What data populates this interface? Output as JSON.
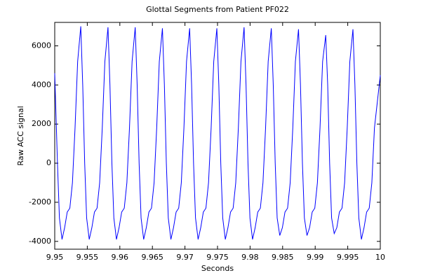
{
  "chart_data": {
    "type": "line",
    "title": "Glottal Segments from Patient PF022",
    "x_label": "Seconds",
    "y_label": "Raw ACC signal",
    "x": [
      9.95,
      9.95042,
      9.95072,
      9.95112,
      9.95152,
      9.95192,
      9.95232,
      9.95272,
      9.95312,
      9.95352,
      9.954,
      9.9543,
      9.9546,
      9.9549,
      9.9553,
      9.9557,
      9.9561,
      9.9565,
      9.9569,
      9.9573,
      9.9577,
      9.95818,
      9.95848,
      9.95878,
      9.95908,
      9.95948,
      9.95988,
      9.96028,
      9.96068,
      9.96108,
      9.96148,
      9.96188,
      9.96236,
      9.96266,
      9.96296,
      9.96326,
      9.96366,
      9.96406,
      9.96446,
      9.96486,
      9.96526,
      9.96566,
      9.96606,
      9.96654,
      9.96684,
      9.96714,
      9.96744,
      9.96784,
      9.96824,
      9.96864,
      9.96904,
      9.96944,
      9.96984,
      9.97024,
      9.97072,
      9.97102,
      9.97132,
      9.97162,
      9.97202,
      9.97242,
      9.97282,
      9.97322,
      9.97362,
      9.97402,
      9.97442,
      9.9749,
      9.9752,
      9.9755,
      9.9758,
      9.9762,
      9.9766,
      9.977,
      9.9774,
      9.9778,
      9.9782,
      9.9786,
      9.97908,
      9.97938,
      9.97968,
      9.97998,
      9.98038,
      9.98078,
      9.98118,
      9.98158,
      9.98198,
      9.98238,
      9.98278,
      9.98326,
      9.98356,
      9.98386,
      9.98416,
      9.98456,
      9.98496,
      9.98536,
      9.98576,
      9.98616,
      9.98656,
      9.98696,
      9.98744,
      9.98774,
      9.98804,
      9.98834,
      9.98874,
      9.98914,
      9.98954,
      9.98994,
      9.99034,
      9.99074,
      9.99114,
      9.99162,
      9.99192,
      9.99222,
      9.99252,
      9.99292,
      9.99332,
      9.99372,
      9.99412,
      9.99452,
      9.99492,
      9.99532,
      9.9958,
      9.9961,
      9.9964,
      9.9967,
      9.9971,
      9.9975,
      9.9979,
      9.9983,
      9.9987,
      9.9991,
      10
    ],
    "series": [
      {
        "color": "#0000ff",
        "values": [
          4600,
          0,
          -2800,
          -3900,
          -3300,
          -2500,
          -2300,
          -1000,
          1800,
          5200,
          7000,
          4000,
          0,
          -2800,
          -3900,
          -3300,
          -2500,
          -2300,
          -1000,
          1800,
          5200,
          6950,
          4000,
          0,
          -2800,
          -3900,
          -3300,
          -2500,
          -2300,
          -1000,
          1800,
          5200,
          6950,
          4000,
          0,
          -2800,
          -3900,
          -3300,
          -2500,
          -2300,
          -1000,
          1800,
          5200,
          6900,
          4000,
          0,
          -2800,
          -3900,
          -3300,
          -2500,
          -2300,
          -1000,
          1800,
          5200,
          6900,
          4000,
          0,
          -2800,
          -3900,
          -3300,
          -2500,
          -2300,
          -1000,
          1800,
          5200,
          6900,
          4000,
          0,
          -2800,
          -3900,
          -3300,
          -2500,
          -2300,
          -1000,
          1800,
          5200,
          6950,
          4000,
          0,
          -2800,
          -3900,
          -3300,
          -2500,
          -2300,
          -1000,
          1800,
          5200,
          6900,
          4000,
          0,
          -2800,
          -3700,
          -3300,
          -2500,
          -2300,
          -1000,
          1800,
          5200,
          6850,
          4000,
          0,
          -2800,
          -3700,
          -3300,
          -2500,
          -2300,
          -1000,
          1800,
          5200,
          6550,
          4000,
          0,
          -2800,
          -3600,
          -3300,
          -2500,
          -2300,
          -1000,
          1800,
          5200,
          6850,
          4000,
          0,
          -2800,
          -3900,
          -3300,
          -2500,
          -2300,
          -1000,
          1800,
          4500
        ]
      }
    ],
    "xlim": [
      9.95,
      10
    ],
    "xticks": [
      9.95,
      9.955,
      9.96,
      9.965,
      9.97,
      9.975,
      9.98,
      9.985,
      9.99,
      9.995,
      10
    ],
    "ylim": [
      -4400,
      7200
    ],
    "yticks": [
      -4000,
      -2000,
      0,
      2000,
      4000,
      6000
    ]
  }
}
